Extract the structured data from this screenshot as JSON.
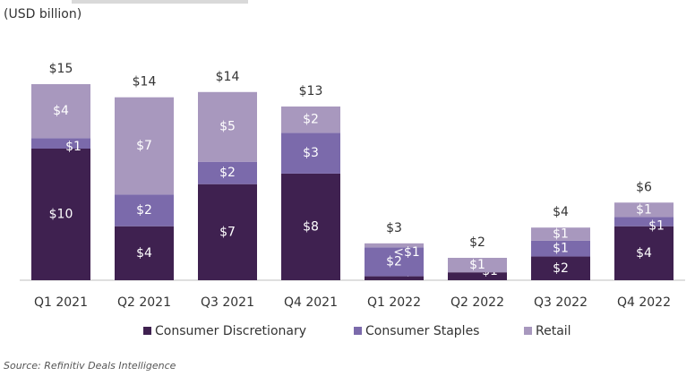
{
  "chart_data": {
    "type": "stacked-bar",
    "subtitle": "(USD billion)",
    "source": "Source: Refinitiv Deals Intelligence",
    "categories": [
      "Q1 2021",
      "Q2 2021",
      "Q3 2021",
      "Q4 2021",
      "Q1 2022",
      "Q2 2022",
      "Q3 2022",
      "Q4 2022"
    ],
    "series": [
      {
        "name": "Consumer Discretionary",
        "color": "#3f2150",
        "values": [
          10.0,
          4.1,
          7.3,
          8.1,
          0.3,
          0.6,
          1.8,
          4.1
        ],
        "value_labels": [
          "$10",
          "$4",
          "$7",
          "$8",
          "<$1",
          "$1",
          "$2",
          "$4"
        ]
      },
      {
        "name": "Consumer Staples",
        "color": "#7b6aab",
        "values": [
          0.8,
          2.4,
          1.7,
          3.1,
          2.2,
          0,
          1.2,
          0.7
        ],
        "value_labels": [
          "$1",
          "$2",
          "$2",
          "$3",
          "$2",
          null,
          "$1",
          "$1"
        ]
      },
      {
        "name": "Retail",
        "color": "#a898be",
        "values": [
          4.1,
          7.4,
          5.3,
          2.0,
          0.3,
          1.1,
          1.0,
          1.1
        ],
        "value_labels": [
          "$4",
          "$7",
          "$5",
          "$2",
          "<$1",
          "$1",
          "$1",
          "$1"
        ]
      }
    ],
    "totals": [
      14.9,
      13.9,
      14.3,
      13.2,
      2.8,
      1.7,
      4.0,
      5.9
    ],
    "total_labels": [
      "$15",
      "$14",
      "$14",
      "$13",
      "$3",
      "$2",
      "$4",
      "$6"
    ]
  }
}
